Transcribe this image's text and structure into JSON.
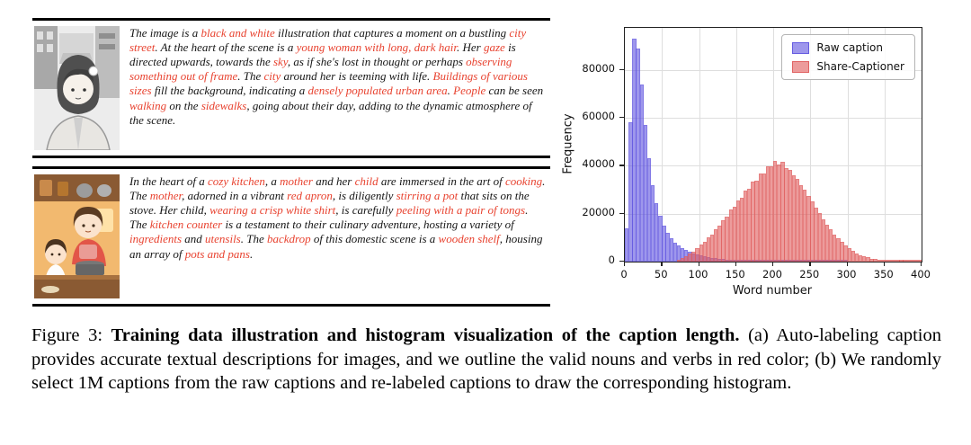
{
  "colors": {
    "highlight_red": "#e8422f",
    "raw_caption_blue": "#6257e0",
    "share_captioner_red": "#e06060",
    "frame_black": "#000000",
    "grid_gray": "#dedede"
  },
  "examples": [
    {
      "image_alt": "black and white illustration of a young woman on a city street",
      "segments": [
        {
          "t": "The image is a ",
          "s": "normal"
        },
        {
          "t": "black and white",
          "s": "red"
        },
        {
          "t": " illustration that captures a moment on a bustling ",
          "s": "normal"
        },
        {
          "t": "city street",
          "s": "red"
        },
        {
          "t": ". At the heart of the scene is a ",
          "s": "normal"
        },
        {
          "t": "young woman with long, dark hair",
          "s": "red"
        },
        {
          "t": ". Her ",
          "s": "normal"
        },
        {
          "t": "gaze",
          "s": "red"
        },
        {
          "t": " is directed upwards, towards the ",
          "s": "normal"
        },
        {
          "t": "sky",
          "s": "red"
        },
        {
          "t": ", as if she's lost in thought or perhaps ",
          "s": "normal"
        },
        {
          "t": "observing something out of frame",
          "s": "red"
        },
        {
          "t": ". The ",
          "s": "normal"
        },
        {
          "t": "city",
          "s": "red"
        },
        {
          "t": " around her is teeming with life. ",
          "s": "normal"
        },
        {
          "t": "Buildings of various sizes",
          "s": "red"
        },
        {
          "t": " fill the background, indicating a ",
          "s": "normal"
        },
        {
          "t": "densely populated urban area",
          "s": "red"
        },
        {
          "t": ". ",
          "s": "normal"
        },
        {
          "t": "People",
          "s": "red"
        },
        {
          "t": " can be seen ",
          "s": "normal"
        },
        {
          "t": "walking",
          "s": "red"
        },
        {
          "t": " on the ",
          "s": "normal"
        },
        {
          "t": "sidewalks",
          "s": "red"
        },
        {
          "t": ", going about their day, adding to the dynamic atmosphere of the scene.",
          "s": "normal"
        }
      ]
    },
    {
      "image_alt": "colorful illustration of a mother and child cooking in a kitchen",
      "segments": [
        {
          "t": "In the heart of a ",
          "s": "normal"
        },
        {
          "t": "cozy kitchen",
          "s": "red"
        },
        {
          "t": ", a ",
          "s": "normal"
        },
        {
          "t": "mother",
          "s": "red"
        },
        {
          "t": " and her ",
          "s": "normal"
        },
        {
          "t": "child",
          "s": "red"
        },
        {
          "t": " are immersed in the art of ",
          "s": "normal"
        },
        {
          "t": "cooking",
          "s": "red"
        },
        {
          "t": ". The ",
          "s": "normal"
        },
        {
          "t": "mother",
          "s": "red"
        },
        {
          "t": ", adorned in a vibrant ",
          "s": "normal"
        },
        {
          "t": "red apron",
          "s": "red"
        },
        {
          "t": ", is diligently ",
          "s": "normal"
        },
        {
          "t": "stirring a pot",
          "s": "red"
        },
        {
          "t": " that sits on the stove. Her child, ",
          "s": "normal"
        },
        {
          "t": "wearing a crisp white shirt",
          "s": "red"
        },
        {
          "t": ", is carefully ",
          "s": "normal"
        },
        {
          "t": "peeling with a pair of tongs",
          "s": "red"
        },
        {
          "t": ". The ",
          "s": "normal"
        },
        {
          "t": "kitchen counter",
          "s": "red"
        },
        {
          "t": " is a testament to their culinary adventure, hosting a variety of ",
          "s": "normal"
        },
        {
          "t": "ingredients",
          "s": "red"
        },
        {
          "t": " and ",
          "s": "normal"
        },
        {
          "t": "utensils",
          "s": "red"
        },
        {
          "t": ". The ",
          "s": "normal"
        },
        {
          "t": "backdrop",
          "s": "red"
        },
        {
          "t": " of this domestic scene is a ",
          "s": "normal"
        },
        {
          "t": "wooden shelf",
          "s": "red"
        },
        {
          "t": ", housing an array of ",
          "s": "normal"
        },
        {
          "t": "pots and pans",
          "s": "red"
        },
        {
          "t": ".",
          "s": "normal"
        }
      ]
    }
  ],
  "chart_data": {
    "type": "bar",
    "title": "",
    "xlabel": "Word number",
    "ylabel": "Frequency",
    "xlim": [
      0,
      400
    ],
    "ylim": [
      0,
      97500
    ],
    "xticks": [
      0,
      50,
      100,
      150,
      200,
      250,
      300,
      350,
      400
    ],
    "yticks": [
      0,
      20000,
      40000,
      60000,
      80000
    ],
    "grid": true,
    "legend_position": "upper right",
    "bin_start": 0,
    "bin_width": 5,
    "series": [
      {
        "name": "Raw caption",
        "color": "#6257e0",
        "values": [
          14000,
          58000,
          93000,
          89000,
          74000,
          57000,
          43000,
          32000,
          24500,
          19000,
          15000,
          12000,
          9800,
          8000,
          6600,
          5600,
          4800,
          4100,
          3500,
          3000,
          2600,
          2200,
          1900,
          1600,
          1400,
          1200,
          1000,
          850,
          720,
          600,
          500,
          420,
          350,
          290,
          240,
          200,
          160,
          130,
          110,
          90,
          70,
          60,
          50,
          40,
          30,
          25,
          20,
          15,
          12,
          10,
          8,
          6,
          5,
          4,
          3,
          3,
          2,
          2,
          1,
          1,
          0,
          0,
          0,
          0,
          0,
          0,
          0,
          0,
          0,
          0,
          0,
          0,
          0,
          0,
          0,
          0,
          0,
          0,
          0,
          0
        ]
      },
      {
        "name": "Share-Captioner",
        "color": "#e06060",
        "values": [
          0,
          0,
          0,
          0,
          0,
          0,
          0,
          0,
          0,
          0,
          0,
          0,
          0,
          0,
          800,
          1500,
          2400,
          3200,
          4300,
          5600,
          7000,
          8200,
          10200,
          11400,
          13600,
          15100,
          17400,
          18800,
          21600,
          22900,
          25600,
          26800,
          29700,
          30400,
          33200,
          33800,
          36600,
          36900,
          39600,
          39900,
          42000,
          40400,
          41600,
          38900,
          38200,
          35900,
          34600,
          31900,
          30100,
          27400,
          25100,
          22400,
          20100,
          17600,
          15400,
          13600,
          11400,
          9900,
          8100,
          6900,
          5500,
          4400,
          3500,
          2800,
          2200,
          1700,
          1300,
          1000,
          750,
          550,
          420,
          300,
          220,
          160,
          110,
          80,
          55,
          35,
          20,
          10
        ]
      }
    ]
  },
  "figure": {
    "caption_segments": [
      {
        "t": "Figure 3: ",
        "s": "normal"
      },
      {
        "t": "Training data illustration and histogram visualization of the caption length.",
        "s": "bold"
      },
      {
        "t": "  (a) Auto-labeling caption provides accurate textual descriptions for images, and we outline the valid nouns and verbs in red color; (b) We randomly select 1M captions from the raw captions and re-labeled captions to draw the corresponding histogram.",
        "s": "normal"
      }
    ]
  }
}
